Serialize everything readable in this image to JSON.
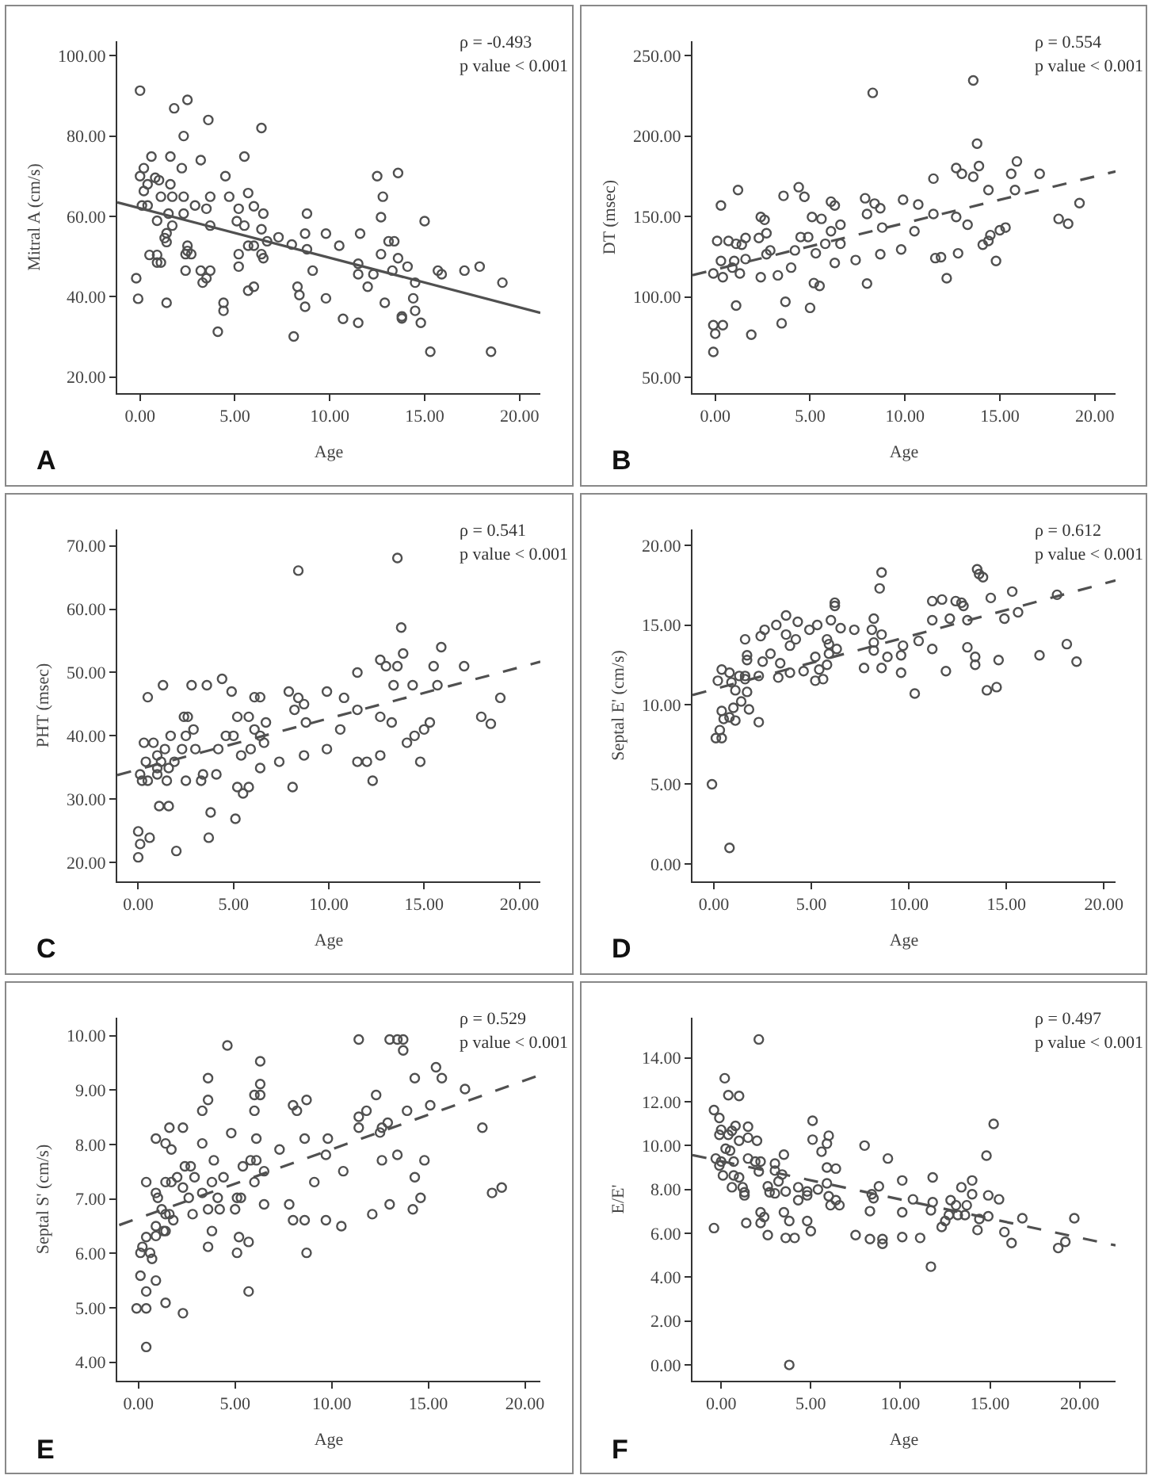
{
  "chart_data": [
    {
      "type": "scatter",
      "xlabel": "Age",
      "ylabel": "Mitral A (cm/s)",
      "annotations": [
        "A",
        "ρ = -0.493",
        "p value < 0.001"
      ],
      "marker": "circle",
      "xlim": [
        -1.2,
        21.1
      ],
      "ylim": [
        16,
        103.6
      ],
      "xticks": [
        {
          "value": 0,
          "label": "0.00"
        },
        {
          "value": 5,
          "label": "5.00"
        },
        {
          "value": 10,
          "label": "10.00"
        },
        {
          "value": 15,
          "label": "15.00"
        },
        {
          "value": 20,
          "label": "20.00"
        }
      ],
      "yticks": [
        {
          "value": 20,
          "label": "20.00"
        },
        {
          "value": 40,
          "label": "40.00"
        },
        {
          "value": 60,
          "label": "60.00"
        },
        {
          "value": 80,
          "label": "80.00"
        },
        {
          "value": 100,
          "label": "100.00"
        }
      ],
      "series": [
        {
          "color": "#505050",
          "x": [
            0,
            1.8,
            2.5,
            3.6,
            2.3,
            6.4,
            0.6,
            1.6,
            5.5,
            3.2,
            0.2,
            2.2,
            0,
            0.8,
            1,
            4.5,
            12.5,
            13.6,
            0.4,
            1.6,
            0.2,
            1.1,
            1.7,
            2.3,
            3.7,
            4.7,
            5.7,
            12.8,
            0.1,
            0.4,
            2.9,
            6,
            1.5,
            2.3,
            6.5,
            8.8,
            3.5,
            5.2,
            12.7,
            15,
            0.9,
            1.7,
            3.7,
            5.1,
            5.5,
            1.4,
            6.4,
            8.7,
            9.8,
            11.6,
            7.3,
            1.3,
            6.7,
            13.1,
            13.4,
            1.4,
            8,
            5.7,
            6,
            10.5,
            2.5,
            2.5,
            8.8,
            2.4,
            2.7,
            5.2,
            6.4,
            12.7,
            0.5,
            0.9,
            6.5,
            13.6,
            1.1,
            0.9,
            5.2,
            11.5,
            17.9,
            2.4,
            3.2,
            3.7,
            9.1,
            13.3,
            15.7,
            17.1,
            14.1,
            11.5,
            12.3,
            15.9,
            3.5,
            -0.2,
            3.3,
            14.5,
            19.1,
            12,
            8.3,
            6,
            5.7,
            8.4,
            9.8,
            14.4,
            -0.1,
            1.4,
            4.4,
            8.7,
            12.9,
            4.4,
            14.5,
            13.8,
            13.8,
            10.7,
            11.5,
            14.8,
            4.1,
            8.1,
            15.3,
            18.5
          ],
          "values": [
            91.3,
            86.9,
            89,
            84,
            80,
            82,
            74.9,
            74.9,
            74.9,
            74,
            72,
            72,
            70,
            69.6,
            69,
            70,
            70,
            70.8,
            68,
            68,
            66.3,
            64.9,
            64.9,
            64.9,
            64.9,
            64.9,
            65.8,
            64.9,
            62.7,
            62.7,
            62.7,
            62.5,
            60.7,
            60.7,
            60.7,
            60.7,
            61.9,
            61.9,
            59.8,
            58.8,
            58.9,
            57.7,
            57.7,
            58.8,
            57.7,
            55.8,
            56.8,
            55.7,
            55.7,
            55.7,
            54.8,
            54.6,
            53.8,
            53.8,
            53.8,
            53.6,
            53,
            52.7,
            52.7,
            52.7,
            52.7,
            51.4,
            51.8,
            50.6,
            50.6,
            50.6,
            50.6,
            50.6,
            50.4,
            50.4,
            49.6,
            49.6,
            48.5,
            48.5,
            47.5,
            48.2,
            47.5,
            46.5,
            46.5,
            46.5,
            46.5,
            46.5,
            46.5,
            46.5,
            47.5,
            45.6,
            45.6,
            45.6,
            44.6,
            44.6,
            43.5,
            43.5,
            43.5,
            42.5,
            42.5,
            42.5,
            41.5,
            40.4,
            39.6,
            39.6,
            39.5,
            38.5,
            38.5,
            37.5,
            38.5,
            36.5,
            36.5,
            35.1,
            34.6,
            34.5,
            33.5,
            33.5,
            31.3,
            30.1,
            26.3,
            26.3
          ]
        },
        {
          "type": "line",
          "color": "#505050",
          "line_style": "solid",
          "marker": "none",
          "x": [
            -1.2,
            21.1
          ],
          "values": [
            63.5,
            36
          ]
        }
      ]
    },
    {
      "type": "scatter",
      "xlabel": "Age",
      "ylabel": "DT (msec)",
      "annotations": [
        "B",
        "ρ = 0.554",
        "p value < 0.001"
      ],
      "marker": "circle",
      "xlim": [
        -1.2,
        21.1
      ],
      "ylim": [
        40.2,
        258.9
      ],
      "xticks": [
        {
          "value": 0,
          "label": "0.00"
        },
        {
          "value": 5,
          "label": "5.00"
        },
        {
          "value": 10,
          "label": "10.00"
        },
        {
          "value": 15,
          "label": "15.00"
        },
        {
          "value": 20,
          "label": "20.00"
        }
      ],
      "yticks": [
        {
          "value": 50,
          "label": "50.00"
        },
        {
          "value": 100,
          "label": "100.00"
        },
        {
          "value": 150,
          "label": "150.00"
        },
        {
          "value": 200,
          "label": "200.00"
        },
        {
          "value": 250,
          "label": "250.00"
        }
      ],
      "series": [
        {
          "color": "#505050",
          "x": [
            13.6,
            8.3,
            13.8,
            15.9,
            13.9,
            12.7,
            13,
            13.6,
            15.6,
            17.1,
            11.5,
            1.2,
            4.4,
            14.4,
            15.8,
            3.6,
            4.7,
            7.9,
            9.9,
            0.3,
            6.1,
            6.3,
            8.4,
            10.7,
            19.2,
            8.7,
            2.4,
            2.6,
            5.1,
            5.6,
            8,
            11.5,
            12.7,
            18.1,
            18.6,
            6.6,
            13.3,
            8.8,
            6.1,
            2.7,
            10.5,
            15,
            15.3,
            0.1,
            0.7,
            1.1,
            1.4,
            1.6,
            2.3,
            4.5,
            4.9,
            5.8,
            6.6,
            14.1,
            14.4,
            14.5,
            2.9,
            4.2,
            9.8,
            2.7,
            5.3,
            8.7,
            12.8,
            0.3,
            1,
            1.6,
            6.3,
            7.4,
            11.6,
            11.9,
            14.8,
            0.9,
            4,
            -0.1,
            1.3,
            0.4,
            2.4,
            3.3,
            12.2,
            5.2,
            5.5,
            8,
            1.1,
            5,
            3.7,
            -0.1,
            0.4,
            3.5,
            0,
            1.9,
            -0.1
          ],
          "values": [
            234.5,
            226.8,
            195.2,
            184.2,
            181.3,
            180.1,
            176.5,
            174.7,
            176.5,
            176.5,
            173.5,
            166.4,
            168.2,
            166.4,
            166.4,
            162.8,
            162.2,
            161.3,
            160.4,
            156.8,
            159.2,
            156.8,
            158,
            157.4,
            158.3,
            155.1,
            149.7,
            147.9,
            149.7,
            148.5,
            151.5,
            151.5,
            149.7,
            148.5,
            145.5,
            144.9,
            144.9,
            143.1,
            140.8,
            139.6,
            140.8,
            141.4,
            143.1,
            134.8,
            134.8,
            133,
            132.4,
            136.6,
            136.6,
            137.2,
            137.2,
            133,
            133,
            132.4,
            134.8,
            138.4,
            128.9,
            128.9,
            129.5,
            126.5,
            127.1,
            126.5,
            127.1,
            122.3,
            122.3,
            123.5,
            121.1,
            122.9,
            124.1,
            124.7,
            122.3,
            118.2,
            118.2,
            114.6,
            114.6,
            112.2,
            112.2,
            113.4,
            111.6,
            108.6,
            106.8,
            108.3,
            94.6,
            93.2,
            97,
            82.4,
            82.4,
            83.6,
            77.1,
            76.5,
            65.8
          ]
        },
        {
          "type": "line",
          "color": "#505050",
          "line_style": "dashed",
          "marker": "none",
          "x": [
            -1.2,
            21.1
          ],
          "values": [
            113.5,
            178
          ]
        }
      ]
    },
    {
      "type": "scatter",
      "xlabel": "Age",
      "ylabel": "PHT (msec)",
      "annotations": [
        "C",
        "ρ = 0.541",
        "p value < 0.001"
      ],
      "marker": "circle",
      "xlim": [
        -1.1,
        21.1
      ],
      "ylim": [
        17,
        72.6
      ],
      "xticks": [
        {
          "value": 0,
          "label": "0.00"
        },
        {
          "value": 5,
          "label": "5.00"
        },
        {
          "value": 10,
          "label": "10.00"
        },
        {
          "value": 15,
          "label": "15.00"
        },
        {
          "value": 20,
          "label": "20.00"
        }
      ],
      "yticks": [
        {
          "value": 20,
          "label": "20.00"
        },
        {
          "value": 30,
          "label": "30.00"
        },
        {
          "value": 40,
          "label": "40.00"
        },
        {
          "value": 50,
          "label": "50.00"
        },
        {
          "value": 60,
          "label": "60.00"
        },
        {
          "value": 70,
          "label": "70.00"
        }
      ],
      "series": [
        {
          "color": "#505050",
          "x": [
            13.6,
            8.4,
            13.8,
            15.9,
            12.7,
            13.9,
            13,
            13.6,
            15.5,
            17.1,
            11.5,
            1.3,
            2.8,
            3.6,
            4.4,
            4.9,
            7.9,
            9.9,
            13.4,
            14.4,
            15.7,
            0.5,
            6.1,
            6.4,
            8.4,
            10.8,
            19,
            8.2,
            8.7,
            11.5,
            2.4,
            2.6,
            5.2,
            5.8,
            12.7,
            18,
            6.7,
            8.8,
            13.3,
            15.3,
            18.5,
            2.9,
            6.1,
            10.6,
            15,
            0.3,
            0.8,
            1.7,
            2.5,
            4.6,
            5,
            6.4,
            14.5,
            6.6,
            14.1,
            1.4,
            2.3,
            3,
            4.2,
            5.9,
            9.9,
            1,
            5.4,
            8.7,
            12.7,
            0.4,
            1.2,
            1.9,
            7.4,
            11.5,
            12,
            14.8,
            1,
            1.6,
            6.4,
            0.1,
            1,
            3.4,
            4.1,
            0.2,
            0.5,
            1.5,
            2.5,
            3.3,
            12.3,
            5.2,
            5.8,
            8.1,
            5.5,
            1.1,
            1.6,
            3.8,
            5.1,
            0,
            0.6,
            3.7,
            0.1,
            2,
            0
          ],
          "values": [
            68.1,
            66.1,
            57.1,
            54,
            52,
            53,
            51,
            51,
            51,
            51,
            50,
            48,
            48,
            48,
            49,
            47,
            47,
            47,
            48,
            48,
            48,
            46.1,
            46.1,
            46.1,
            46,
            46,
            46,
            44.1,
            45,
            44.1,
            43,
            43,
            43,
            43,
            43,
            43,
            42.1,
            42.1,
            42.1,
            42.1,
            41.9,
            41,
            41,
            41,
            41,
            38.9,
            38.9,
            40,
            40,
            40,
            40,
            40,
            40,
            38.9,
            38.9,
            37.9,
            37.9,
            37.9,
            37.9,
            37.9,
            37.9,
            36.9,
            36.9,
            36.9,
            36.9,
            35.9,
            35.9,
            35.9,
            35.9,
            35.9,
            35.9,
            35.9,
            34.9,
            34.9,
            34.9,
            33.9,
            33.9,
            33.9,
            33.9,
            32.9,
            32.9,
            32.9,
            32.9,
            32.9,
            32.9,
            31.9,
            31.9,
            31.9,
            30.9,
            28.9,
            28.9,
            27.9,
            26.9,
            24.9,
            23.9,
            23.9,
            22.9,
            21.8,
            20.8
          ]
        },
        {
          "type": "line",
          "color": "#505050",
          "line_style": "dashed",
          "marker": "none",
          "x": [
            -1.1,
            21.1
          ],
          "values": [
            33.8,
            51.7
          ]
        }
      ]
    },
    {
      "type": "scatter",
      "xlabel": "Age",
      "ylabel": "Septal E' (cm/s)",
      "annotations": [
        "D",
        "ρ = 0.612",
        "p value < 0.001"
      ],
      "marker": "circle",
      "xlim": [
        -1.1,
        20.6
      ],
      "ylim": [
        -1.1,
        21
      ],
      "xticks": [
        {
          "value": 0,
          "label": "0.00"
        },
        {
          "value": 5,
          "label": "5.00"
        },
        {
          "value": 10,
          "label": "10.00"
        },
        {
          "value": 15,
          "label": "15.00"
        },
        {
          "value": 20,
          "label": "20.00"
        }
      ],
      "yticks": [
        {
          "value": 0,
          "label": "0.00"
        },
        {
          "value": 5,
          "label": "5.00"
        },
        {
          "value": 10,
          "label": "10.00"
        },
        {
          "value": 15,
          "label": "15.00"
        },
        {
          "value": 20,
          "label": "20.00"
        }
      ],
      "series": [
        {
          "color": "#505050",
          "x": [
            13.5,
            8.6,
            13.6,
            13.8,
            8.5,
            15.3,
            17.6,
            6.2,
            11.2,
            11.7,
            12.4,
            12.7,
            14.2,
            6.2,
            12.8,
            15.6,
            3.7,
            8.2,
            11.2,
            12.1,
            13,
            14.9,
            4.3,
            6,
            3.2,
            5.3,
            6.5,
            7.2,
            8.1,
            1.6,
            2.6,
            2.4,
            4.9,
            3.7,
            4.2,
            5.8,
            8.6,
            10.5,
            8.2,
            5.9,
            6.3,
            3.9,
            8.2,
            11.2,
            13,
            9.7,
            1.7,
            2.9,
            5.9,
            9.6,
            13.4,
            16.7,
            18.1,
            8.9,
            1.7,
            2.5,
            5.2,
            3.4,
            14.6,
            18.6,
            13.4,
            0.4,
            5.8,
            7.7,
            8.6,
            4.6,
            5.4,
            11.9,
            0.8,
            1.3,
            1.6,
            2.3,
            3.9,
            9.6,
            3.3,
            0.2,
            0.9,
            1.6,
            5.2,
            5.6,
            1.1,
            1.7,
            10.3,
            14,
            14.5,
            0.4,
            1,
            1.4,
            1.8,
            0.5,
            1.1,
            0.8,
            2.3,
            0.3,
            0.1,
            0.4,
            -0.1,
            0.8
          ],
          "values": [
            18.5,
            18.3,
            18.2,
            18,
            17.3,
            17.1,
            16.9,
            16.4,
            16.5,
            16.6,
            16.5,
            16.4,
            16.7,
            16.2,
            16.2,
            15.8,
            15.6,
            15.4,
            15.3,
            15.4,
            15.3,
            15.4,
            15.2,
            15.3,
            15,
            15,
            14.8,
            14.7,
            14.7,
            14.1,
            14.7,
            14.3,
            14.7,
            14.4,
            14.1,
            14.1,
            14.4,
            14,
            13.9,
            13.8,
            13.5,
            13.7,
            13.4,
            13.5,
            13.6,
            13.7,
            13.1,
            13.2,
            13.2,
            13.1,
            13,
            13.1,
            13.8,
            13,
            12.8,
            12.7,
            13,
            12.6,
            12.8,
            12.7,
            12.5,
            12.2,
            12.5,
            12.3,
            12.3,
            12.1,
            12.2,
            12.1,
            12,
            11.8,
            11.8,
            11.8,
            12,
            12,
            11.7,
            11.5,
            11.4,
            11.6,
            11.5,
            11.6,
            10.9,
            10.8,
            10.7,
            10.9,
            11.1,
            9.6,
            9.8,
            10.2,
            9.7,
            9.1,
            9,
            9.2,
            8.9,
            8.4,
            7.9,
            7.9,
            5,
            1
          ]
        },
        {
          "type": "line",
          "color": "#505050",
          "line_style": "dashed",
          "marker": "none",
          "x": [
            -1.1,
            20.6
          ],
          "values": [
            10.6,
            17.8
          ]
        }
      ]
    },
    {
      "type": "scatter",
      "xlabel": "Age",
      "ylabel": "Septal S' (cm/s)",
      "annotations": [
        "E",
        "ρ = 0.529",
        "p value < 0.001"
      ],
      "marker": "circle",
      "xlim": [
        -1.1,
        20.8
      ],
      "ylim": [
        3.66,
        10.33
      ],
      "xticks": [
        {
          "value": 0,
          "label": "0.00"
        },
        {
          "value": 5,
          "label": "5.00"
        },
        {
          "value": 10,
          "label": "10.00"
        },
        {
          "value": 15,
          "label": "15.00"
        },
        {
          "value": 20,
          "label": "20.00"
        }
      ],
      "yticks": [
        {
          "value": 4,
          "label": "4.00"
        },
        {
          "value": 5,
          "label": "5.00"
        },
        {
          "value": 6,
          "label": "6.00"
        },
        {
          "value": 7,
          "label": "7.00"
        },
        {
          "value": 8,
          "label": "8.00"
        },
        {
          "value": 9,
          "label": "9.00"
        },
        {
          "value": 10,
          "label": "10.00"
        }
      ],
      "series": [
        {
          "color": "#505050",
          "x": [
            4.6,
            11.4,
            13,
            13.4,
            13.7,
            13.7,
            6.3,
            15.4,
            3.6,
            14.3,
            15.7,
            6.3,
            16.9,
            6,
            6.3,
            12.3,
            3.6,
            8.7,
            8,
            15.1,
            3.3,
            6,
            8.2,
            11.8,
            13.9,
            11.4,
            1.6,
            2.3,
            11.4,
            17.8,
            12.6,
            4.8,
            12.5,
            12.9,
            0.9,
            6.1,
            8.6,
            9.8,
            1.4,
            3.3,
            1.7,
            7.3,
            9.7,
            13.4,
            3.9,
            5.8,
            6.1,
            12.6,
            14.8,
            2.4,
            2.7,
            5.4,
            10.6,
            6.5,
            2.9,
            2,
            4.4,
            14.3,
            0.4,
            1.4,
            1.7,
            3.8,
            6,
            9.1,
            2.3,
            18.8,
            18.3,
            0.9,
            3.3,
            1,
            2.6,
            4.1,
            5.1,
            5.3,
            14.6,
            1.2,
            3.6,
            4.2,
            5,
            14.2,
            1.4,
            1.6,
            2.8,
            12.1,
            6.5,
            7.8,
            13,
            1.8,
            8,
            8.6,
            9.7,
            0.9,
            10.5,
            3.8,
            1.3,
            1.4,
            0.9,
            0.4,
            5.2,
            5.7,
            0.2,
            3.6,
            0.1,
            0.6,
            5.1,
            8.7,
            0.7,
            0.1,
            0.9,
            0.4,
            5.7,
            1.4,
            -0.1,
            0.4,
            2.3,
            0.4
          ],
          "values": [
            9.82,
            9.93,
            9.93,
            9.93,
            9.93,
            9.73,
            9.53,
            9.42,
            9.22,
            9.22,
            9.22,
            9.11,
            9.02,
            8.91,
            8.91,
            8.91,
            8.82,
            8.82,
            8.72,
            8.72,
            8.62,
            8.62,
            8.62,
            8.62,
            8.62,
            8.51,
            8.31,
            8.31,
            8.31,
            8.31,
            8.31,
            8.21,
            8.22,
            8.4,
            8.11,
            8.11,
            8.11,
            8.11,
            8.02,
            8.02,
            7.91,
            7.91,
            7.81,
            7.81,
            7.71,
            7.71,
            7.71,
            7.71,
            7.71,
            7.6,
            7.6,
            7.6,
            7.51,
            7.51,
            7.4,
            7.4,
            7.4,
            7.4,
            7.31,
            7.31,
            7.31,
            7.31,
            7.31,
            7.31,
            7.21,
            7.21,
            7.11,
            7.11,
            7.11,
            7.02,
            7.02,
            7.02,
            7.02,
            7.02,
            7.02,
            6.81,
            6.81,
            6.81,
            6.81,
            6.81,
            6.72,
            6.72,
            6.72,
            6.72,
            6.9,
            6.9,
            6.9,
            6.61,
            6.61,
            6.61,
            6.61,
            6.5,
            6.5,
            6.41,
            6.41,
            6.41,
            6.32,
            6.3,
            6.3,
            6.21,
            6.12,
            6.12,
            6.01,
            6.01,
            6.01,
            6.01,
            5.9,
            5.59,
            5.5,
            5.3,
            5.3,
            5.09,
            4.99,
            4.99,
            4.9,
            4.28
          ]
        },
        {
          "type": "line",
          "color": "#505050",
          "line_style": "dashed",
          "marker": "none",
          "x": [
            -1,
            20.8
          ],
          "values": [
            6.52,
            9.28
          ]
        }
      ]
    },
    {
      "type": "scatter",
      "xlabel": "Age",
      "ylabel": "E/E'",
      "annotations": [
        "F",
        "ρ = 0.497",
        "p value < 0.001"
      ],
      "marker": "circle",
      "xlim": [
        -1.6,
        22
      ],
      "ylim": [
        -0.72,
        15.83
      ],
      "xticks": [
        {
          "value": 0,
          "label": "0.00"
        },
        {
          "value": 5,
          "label": "5.00"
        },
        {
          "value": 10,
          "label": "10.00"
        },
        {
          "value": 15,
          "label": "15.00"
        },
        {
          "value": 20,
          "label": "20.00"
        }
      ],
      "yticks": [
        {
          "value": 0,
          "label": "0.00"
        },
        {
          "value": 2,
          "label": "2.00"
        },
        {
          "value": 4,
          "label": "4.00"
        },
        {
          "value": 6,
          "label": "6.00"
        },
        {
          "value": 8,
          "label": "8.00"
        },
        {
          "value": 10,
          "label": "10.00"
        },
        {
          "value": 12,
          "label": "12.00"
        },
        {
          "value": 14,
          "label": "14.00"
        }
      ],
      "series": [
        {
          "color": "#505050",
          "x": [
            2.1,
            0.2,
            0.4,
            1,
            -0.4,
            -0.1,
            15.2,
            5.1,
            0,
            0.6,
            1.5,
            0.8,
            0.4,
            -0.1,
            1.5,
            1,
            5.1,
            6,
            5.9,
            2,
            8,
            0.25,
            0.5,
            5.6,
            14.8,
            3.5,
            9.3,
            -0.3,
            1.5,
            0.7,
            0,
            1.9,
            2.2,
            3,
            5.9,
            6.4,
            -0.1,
            2.1,
            3,
            3.4,
            3.2,
            0.1,
            0.7,
            1,
            11.8,
            10.1,
            14,
            5.9,
            8.8,
            0.6,
            1.2,
            2.6,
            4.3,
            5.4,
            13.4,
            1.3,
            1.3,
            2.7,
            3,
            3.6,
            4.8,
            4.8,
            8.4,
            14,
            14.9,
            15.5,
            10.7,
            11.8,
            12.8,
            6,
            6.4,
            4.3,
            8.5,
            6.1,
            6.6,
            13.1,
            13.7,
            11.7,
            10.1,
            8.3,
            3.5,
            2.2,
            12.7,
            13.2,
            13.6,
            14.9,
            2.4,
            16.8,
            19.7,
            14.4,
            12.5,
            3.8,
            4.8,
            2.2,
            1.4,
            12.3,
            -0.4,
            5,
            14.3,
            15.8,
            2.6,
            7.5,
            8.3,
            9,
            10.1,
            11.1,
            3.6,
            4.1,
            9,
            16.2,
            19.2,
            18.8,
            11.7,
            3.8
          ],
          "values": [
            14.84,
            13.07,
            12.3,
            12.26,
            11.62,
            11.26,
            10.99,
            11.13,
            10.72,
            10.67,
            10.86,
            10.9,
            10.49,
            10.49,
            10.36,
            10.22,
            10.27,
            10.45,
            10.09,
            10.22,
            10,
            9.86,
            9.77,
            9.72,
            9.54,
            9.59,
            9.41,
            9.41,
            9.41,
            9.27,
            9.27,
            9.27,
            9.27,
            9.18,
            9,
            8.95,
            9.09,
            8.82,
            8.86,
            8.68,
            8.37,
            8.64,
            8.64,
            8.55,
            8.55,
            8.41,
            8.41,
            8.28,
            8.14,
            8.1,
            8.1,
            8.14,
            8.1,
            8,
            8.1,
            7.87,
            7.73,
            7.87,
            7.82,
            7.91,
            7.91,
            7.73,
            7.78,
            7.78,
            7.73,
            7.55,
            7.55,
            7.42,
            7.51,
            7.69,
            7.51,
            7.51,
            7.6,
            7.28,
            7.28,
            7.28,
            7.28,
            7.05,
            6.96,
            7.01,
            6.96,
            6.96,
            6.83,
            6.83,
            6.83,
            6.78,
            6.74,
            6.69,
            6.69,
            6.65,
            6.56,
            6.56,
            6.56,
            6.47,
            6.47,
            6.29,
            6.24,
            6.1,
            6.15,
            6.06,
            5.92,
            5.92,
            5.74,
            5.74,
            5.83,
            5.79,
            5.79,
            5.79,
            5.52,
            5.56,
            5.61,
            5.33,
            4.48,
            0
          ]
        },
        {
          "type": "line",
          "color": "#505050",
          "line_style": "dashed",
          "marker": "none",
          "x": [
            -1.6,
            22
          ],
          "values": [
            9.57,
            5.45
          ]
        }
      ]
    }
  ]
}
